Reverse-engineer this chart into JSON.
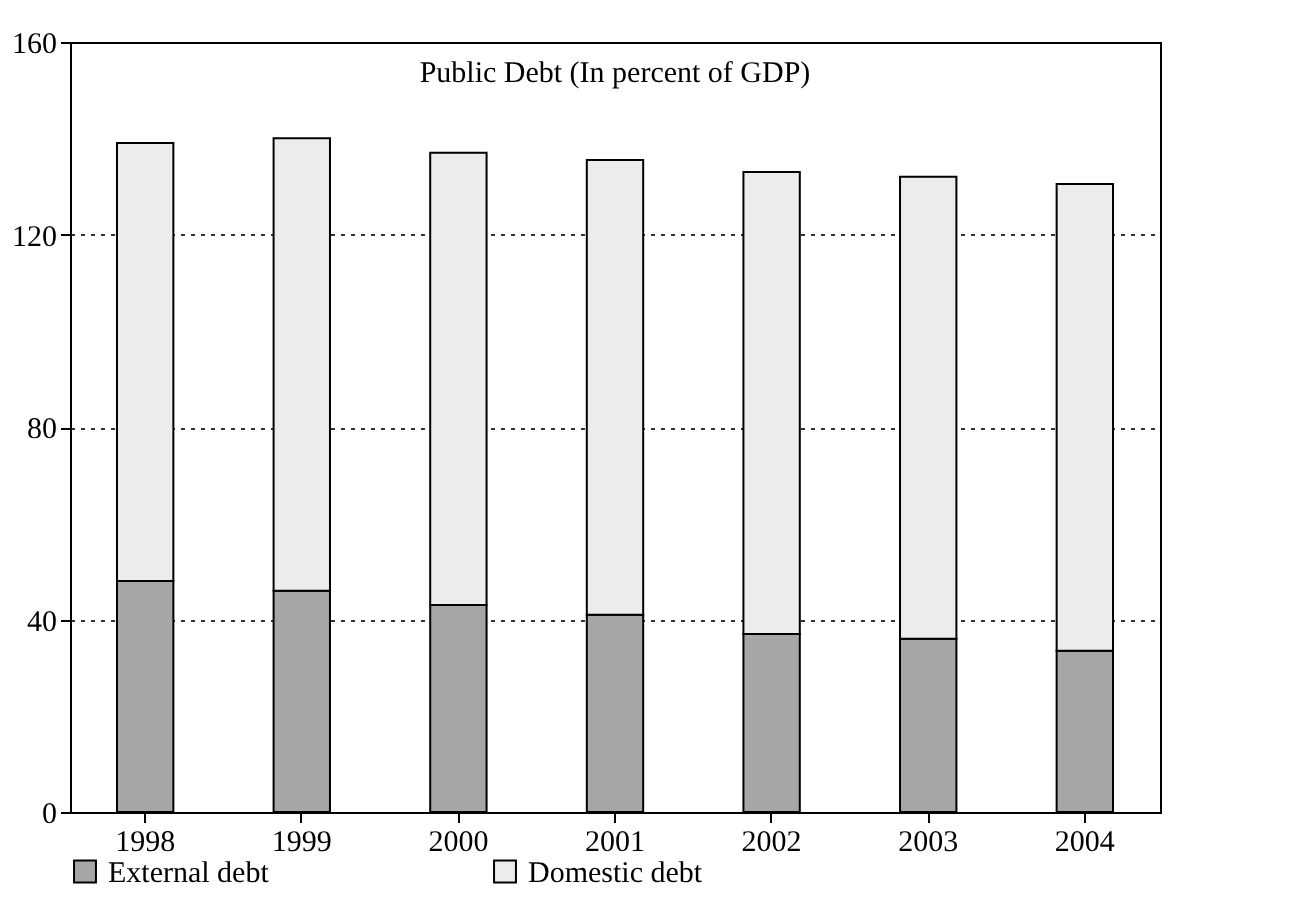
{
  "chart_data": {
    "type": "bar",
    "title": "Public Debt (In percent of GDP)",
    "stacked": true,
    "categories": [
      "1998",
      "1999",
      "2000",
      "2001",
      "2002",
      "2003",
      "2004"
    ],
    "series": [
      {
        "name": "External debt",
        "color": "#a6a6a6",
        "values": [
          48,
          46,
          43,
          41,
          37,
          36,
          33.5
        ]
      },
      {
        "name": "Domestic debt",
        "color": "#ececec",
        "values": [
          91,
          94,
          94,
          94.5,
          96,
          96,
          97
        ]
      }
    ],
    "ylim": [
      0,
      160
    ],
    "yticks": [
      0,
      40,
      80,
      120,
      160
    ],
    "grid": "y",
    "legend": "bottom"
  }
}
